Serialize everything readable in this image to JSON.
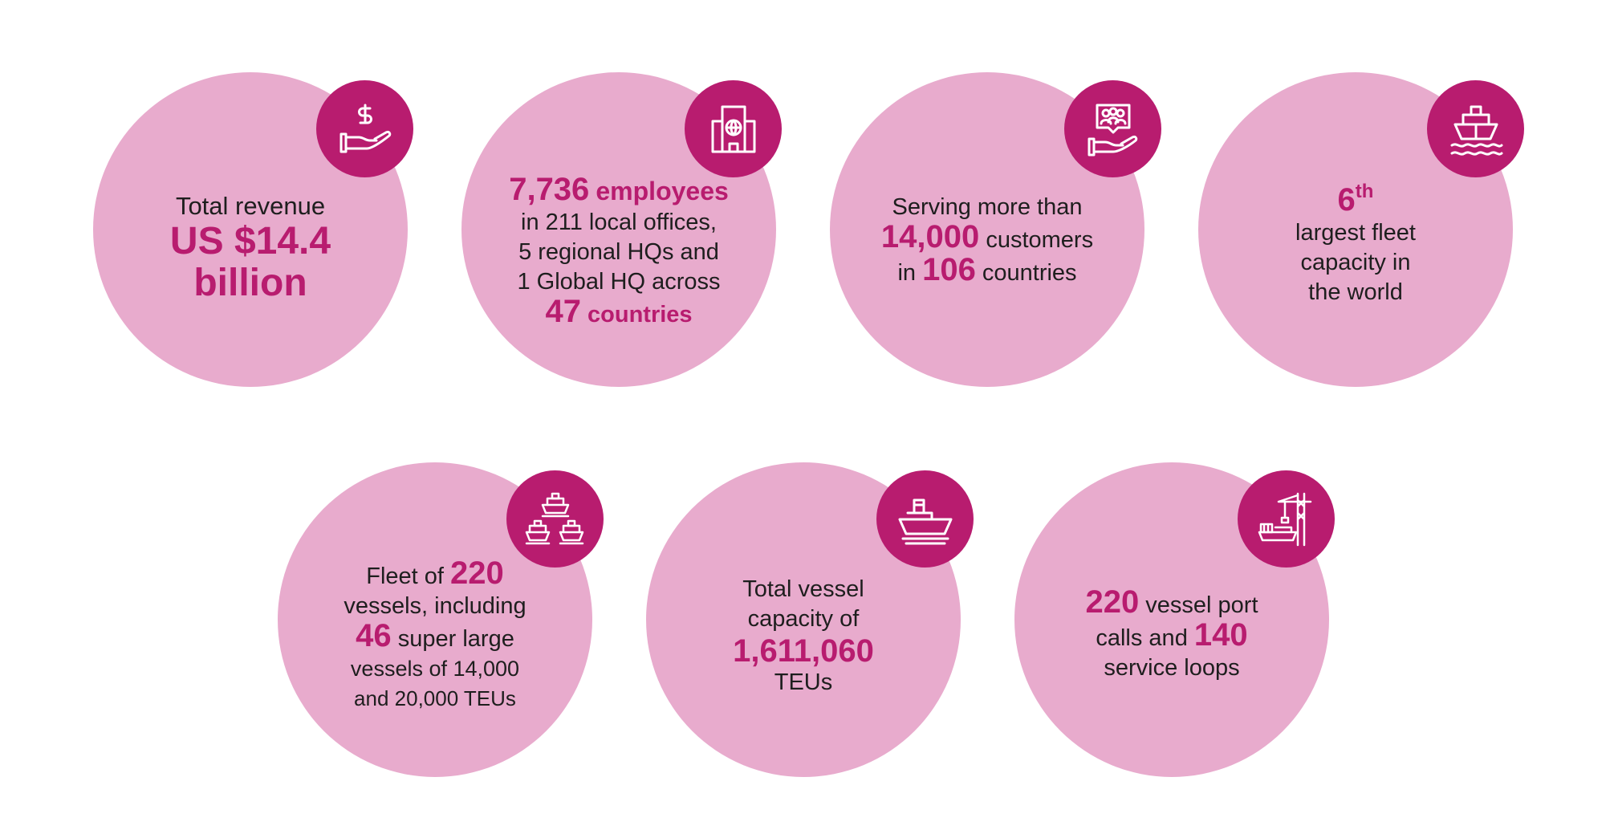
{
  "colors": {
    "circle": "#e8abcd",
    "accent": "#b81c6f",
    "text": "#1e1e1e",
    "background": "#ffffff"
  },
  "stats": {
    "revenue": {
      "icon": "hand-dollar-icon",
      "label": "Total revenue",
      "amount": "US $14.4",
      "unit": "billion"
    },
    "employees": {
      "icon": "office-globe-icon",
      "count": "7,736",
      "count_label": "employees",
      "line1": "in 211 local offices,",
      "line2": "5 regional HQs and",
      "line3": "1 Global HQ across",
      "country_count": "47",
      "country_label": "countries"
    },
    "customers": {
      "icon": "customers-hand-icon",
      "line1": "Serving more than",
      "customer_count": "14,000",
      "customer_label": "customers",
      "in_word": "in",
      "country_count": "106",
      "country_label": "countries"
    },
    "fleet_rank": {
      "icon": "ship-waves-icon",
      "rank": "6",
      "suffix": "th",
      "line1": "largest fleet",
      "line2": "capacity in",
      "line3": "the world"
    },
    "fleet": {
      "icon": "three-ships-icon",
      "prefix": "Fleet of",
      "vessel_count": "220",
      "line2": "vessels, including",
      "large_count": "46",
      "large_label": "super large",
      "line4": "vessels of 14,000",
      "line5": "and 20,000 TEUs"
    },
    "capacity": {
      "icon": "cargo-ship-icon",
      "line1": "Total vessel",
      "line2": "capacity of",
      "teu_count": "1,611,060",
      "teu_label": "TEUs"
    },
    "ports": {
      "icon": "port-crane-icon",
      "port_calls": "220",
      "port_label": "vessel port",
      "calls_label": "calls and",
      "loop_count": "140",
      "loop_label": "service loops"
    }
  }
}
